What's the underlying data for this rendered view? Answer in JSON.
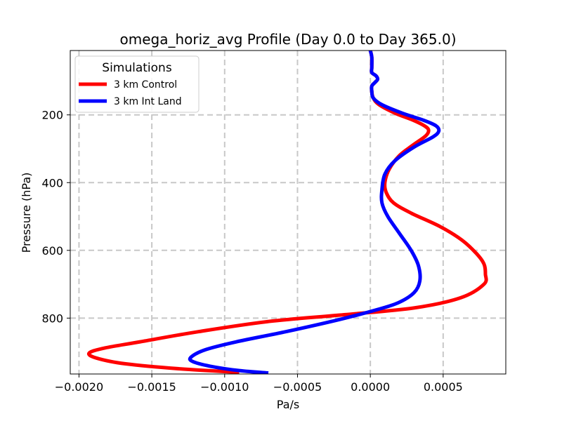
{
  "chart_data": {
    "type": "line",
    "title": "omega_horiz_avg Profile (Day 0.0 to Day 365.0)",
    "xlabel": "Pa/s",
    "ylabel": "Pressure (hPa)",
    "xlim": [
      -0.00206,
      0.00093
    ],
    "ylim": [
      965,
      10
    ],
    "y_inverted": true,
    "grid": true,
    "x_ticks": [
      -0.002,
      -0.0015,
      -0.001,
      -0.0005,
      0.0,
      0.0005
    ],
    "x_tick_labels": [
      "−0.0020",
      "−0.0015",
      "−0.0010",
      "−0.0005",
      "0.0000",
      "0.0005"
    ],
    "y_ticks": [
      200,
      400,
      600,
      800
    ],
    "y_tick_labels": [
      "200",
      "400",
      "600",
      "800"
    ],
    "legend": {
      "title": "Simulations",
      "position": "top-left"
    },
    "series": [
      {
        "name": "3 km Control",
        "color": "#ff0000",
        "points": [
          [
            0.0,
            10
          ],
          [
            1e-05,
            30
          ],
          [
            1e-05,
            60
          ],
          [
            1e-05,
            75
          ],
          [
            4e-05,
            85
          ],
          [
            5e-05,
            95
          ],
          [
            3e-05,
            105
          ],
          [
            1e-05,
            115
          ],
          [
            1e-05,
            130
          ],
          [
            2e-05,
            150
          ],
          [
            6e-05,
            170
          ],
          [
            0.00017,
            195
          ],
          [
            0.00029,
            215
          ],
          [
            0.00037,
            232
          ],
          [
            0.0004,
            245
          ],
          [
            0.00038,
            262
          ],
          [
            0.00029,
            290
          ],
          [
            0.0002,
            320
          ],
          [
            0.00013,
            360
          ],
          [
            0.0001,
            400
          ],
          [
            0.00011,
            430
          ],
          [
            0.00016,
            460
          ],
          [
            0.00028,
            490
          ],
          [
            0.00048,
            530
          ],
          [
            0.00063,
            570
          ],
          [
            0.00073,
            610
          ],
          [
            0.00078,
            640
          ],
          [
            0.00079,
            670
          ],
          [
            0.00078,
            700
          ],
          [
            0.00062,
            740
          ],
          [
            0.0003,
            770
          ],
          [
            -0.00018,
            790
          ],
          [
            -0.0007,
            810
          ],
          [
            -0.00118,
            840
          ],
          [
            -0.00158,
            870
          ],
          [
            -0.00182,
            888
          ],
          [
            -0.00193,
            903
          ],
          [
            -0.00188,
            918
          ],
          [
            -0.00168,
            935
          ],
          [
            -0.0013,
            950
          ],
          [
            -0.0009,
            960
          ]
        ]
      },
      {
        "name": "3 km Int Land",
        "color": "#0000ff",
        "points": [
          [
            0.0,
            10
          ],
          [
            1e-05,
            30
          ],
          [
            1e-05,
            60
          ],
          [
            1e-05,
            75
          ],
          [
            4e-05,
            85
          ],
          [
            5e-05,
            95
          ],
          [
            3e-05,
            105
          ],
          [
            1e-05,
            115
          ],
          [
            1e-05,
            130
          ],
          [
            2e-05,
            150
          ],
          [
            8e-05,
            170
          ],
          [
            0.00022,
            195
          ],
          [
            0.00036,
            215
          ],
          [
            0.00045,
            232
          ],
          [
            0.00047,
            248
          ],
          [
            0.00043,
            265
          ],
          [
            0.0003,
            295
          ],
          [
            0.00017,
            335
          ],
          [
            0.0001,
            375
          ],
          [
            8e-05,
            420
          ],
          [
            8e-05,
            460
          ],
          [
            0.00012,
            500
          ],
          [
            0.0002,
            550
          ],
          [
            0.00028,
            600
          ],
          [
            0.00033,
            645
          ],
          [
            0.00034,
            690
          ],
          [
            0.0003,
            725
          ],
          [
            0.00019,
            755
          ],
          [
            3e-05,
            777
          ],
          [
            -0.00022,
            805
          ],
          [
            -0.00058,
            840
          ],
          [
            -0.00092,
            870
          ],
          [
            -0.00113,
            893
          ],
          [
            -0.00123,
            915
          ],
          [
            -0.00122,
            928
          ],
          [
            -0.0011,
            942
          ],
          [
            -0.0009,
            955
          ],
          [
            -0.0007,
            962
          ]
        ]
      }
    ]
  }
}
